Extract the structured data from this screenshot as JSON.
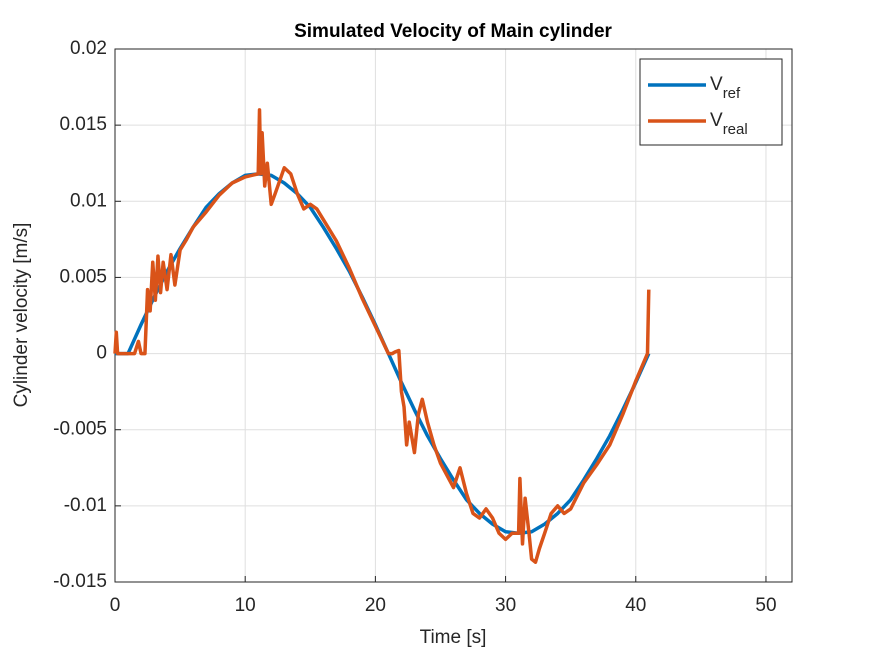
{
  "chart_data": {
    "type": "line",
    "title": "Simulated Velocity of Main cylinder",
    "xlabel": "Time [s]",
    "ylabel": "Cylinder velocity [m/s]",
    "xlim": [
      0,
      52
    ],
    "xticks": [
      0,
      10,
      20,
      30,
      40,
      50
    ],
    "ylim": [
      -0.015,
      0.02
    ],
    "yticks": [
      0.02,
      0.015,
      0.01,
      0.005,
      0,
      -0.005,
      -0.01,
      -0.015
    ],
    "grid": true,
    "legend_position": "upper-right",
    "series": [
      {
        "name": "Vref",
        "color": "#0072BD",
        "x": [
          0,
          1,
          2,
          3,
          4,
          5,
          6,
          7,
          8,
          9,
          10,
          11,
          12,
          13,
          14,
          15,
          16,
          17,
          18,
          19,
          20,
          21,
          22,
          23,
          24,
          25,
          26,
          27,
          28,
          29,
          30,
          31,
          32,
          33,
          34,
          35,
          36,
          37,
          38,
          39,
          40,
          41
        ],
        "values": [
          0,
          0,
          0.0019,
          0.0037,
          0.0054,
          0.0069,
          0.0083,
          0.0096,
          0.0105,
          0.0112,
          0.0117,
          0.0118,
          0.0117,
          0.0112,
          0.0105,
          0.0096,
          0.0083,
          0.0069,
          0.0054,
          0.0037,
          0.0019,
          0,
          -0.0019,
          -0.0037,
          -0.0054,
          -0.0069,
          -0.0083,
          -0.0096,
          -0.0105,
          -0.0112,
          -0.0117,
          -0.0118,
          -0.0117,
          -0.0112,
          -0.0105,
          -0.0096,
          -0.0083,
          -0.0069,
          -0.0054,
          -0.0037,
          -0.0019,
          0
        ]
      },
      {
        "name": "Vreal",
        "color": "#D95319",
        "x": [
          0,
          0.1,
          0.2,
          1.5,
          1.8,
          2,
          2.3,
          2.5,
          2.7,
          2.9,
          3.1,
          3.3,
          3.5,
          3.7,
          4,
          4.3,
          4.6,
          5,
          5.5,
          6,
          7,
          8,
          9,
          10,
          11,
          11.1,
          11.2,
          11.3,
          11.5,
          11.7,
          12,
          12.3,
          13,
          13.5,
          14,
          14.5,
          15,
          15.5,
          16,
          17,
          18,
          19,
          20,
          21,
          21.3,
          21.5,
          21.8,
          22,
          22.2,
          22.4,
          22.6,
          23,
          23.3,
          23.6,
          24,
          24.5,
          25,
          26,
          26.5,
          27,
          27.5,
          28,
          28.5,
          29,
          29.5,
          30,
          30.5,
          31,
          31.1,
          31.3,
          31.5,
          31.8,
          32,
          32.3,
          32.6,
          33,
          33.5,
          34,
          34.5,
          35,
          36,
          37,
          38,
          39,
          40,
          40.9,
          41
        ],
        "values": [
          0,
          0.0014,
          0,
          0,
          0.0008,
          0,
          0,
          0.0042,
          0.0028,
          0.006,
          0.0035,
          0.0064,
          0.004,
          0.006,
          0.0042,
          0.0065,
          0.0045,
          0.0068,
          0.0075,
          0.0083,
          0.0093,
          0.0104,
          0.0112,
          0.0116,
          0.0118,
          0.016,
          0.0118,
          0.0145,
          0.011,
          0.0125,
          0.0098,
          0.0105,
          0.0122,
          0.0118,
          0.0105,
          0.0095,
          0.0098,
          0.0095,
          0.0088,
          0.0074,
          0.0056,
          0.0036,
          0.0018,
          0,
          0,
          0.0001,
          0.0002,
          -0.0025,
          -0.0035,
          -0.006,
          -0.0045,
          -0.0065,
          -0.004,
          -0.003,
          -0.0045,
          -0.006,
          -0.0072,
          -0.0088,
          -0.0075,
          -0.0092,
          -0.0105,
          -0.0108,
          -0.0102,
          -0.0108,
          -0.0118,
          -0.0122,
          -0.0118,
          -0.0118,
          -0.0082,
          -0.0125,
          -0.0095,
          -0.0118,
          -0.0135,
          -0.0137,
          -0.0128,
          -0.0118,
          -0.0105,
          -0.01,
          -0.0105,
          -0.0102,
          -0.0085,
          -0.0073,
          -0.006,
          -0.004,
          -0.0018,
          0,
          0.0042
        ]
      }
    ]
  }
}
